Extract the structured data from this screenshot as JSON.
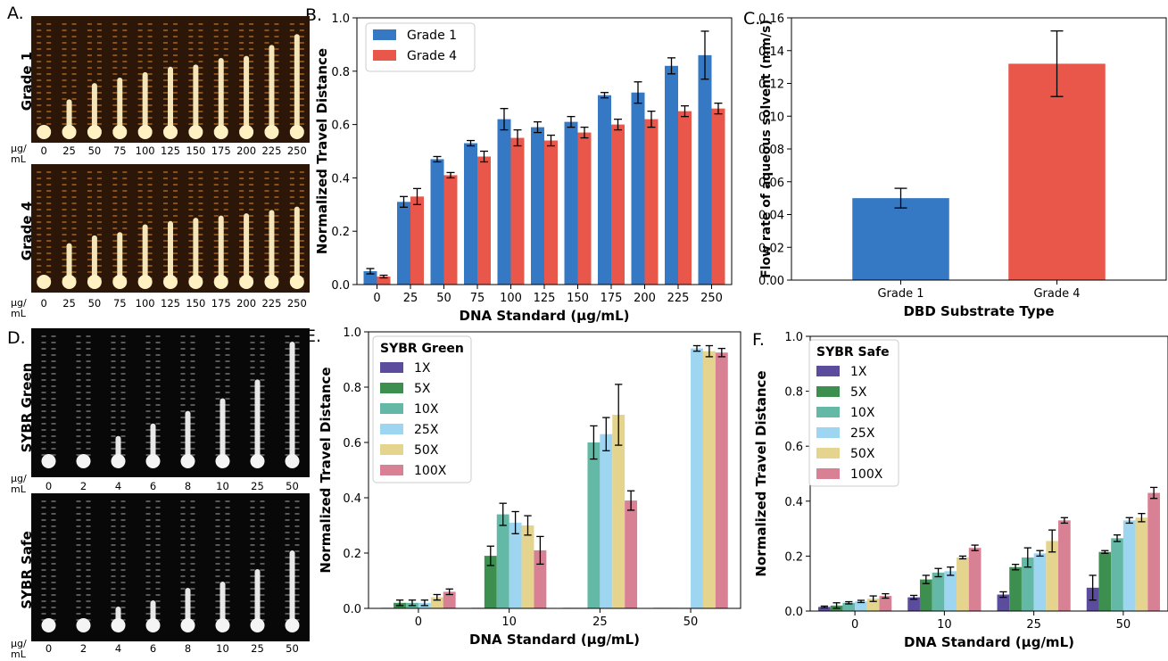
{
  "panel_labels": [
    "A.",
    "B.",
    "C.",
    "D.",
    "E.",
    "F."
  ],
  "photos": {
    "A": {
      "rows": [
        "Grade 1",
        "Grade 4"
      ],
      "ticks": [
        "0",
        "25",
        "50",
        "75",
        "100",
        "125",
        "150",
        "175",
        "200",
        "225",
        "250"
      ],
      "unit": "μg/ mL"
    },
    "D": {
      "rows": [
        "SYBR Green",
        "SYBR Safe"
      ],
      "ticks": [
        "0",
        "2",
        "4",
        "6",
        "8",
        "10",
        "25",
        "50"
      ],
      "unit": "μg/ mL"
    }
  },
  "chart_data": [
    {
      "id": "B",
      "type": "bar",
      "categories": [
        "0",
        "25",
        "50",
        "75",
        "100",
        "125",
        "150",
        "175",
        "200",
        "225",
        "250"
      ],
      "series": [
        {
          "name": "Grade 1",
          "color": "#3579c4",
          "values": [
            0.05,
            0.31,
            0.47,
            0.53,
            0.62,
            0.59,
            0.61,
            0.71,
            0.72,
            0.82,
            0.86
          ],
          "errors": [
            0.01,
            0.02,
            0.01,
            0.01,
            0.04,
            0.02,
            0.02,
            0.01,
            0.04,
            0.03,
            0.09
          ]
        },
        {
          "name": "Grade 4",
          "color": "#e8574a",
          "values": [
            0.03,
            0.33,
            0.41,
            0.48,
            0.55,
            0.54,
            0.57,
            0.6,
            0.62,
            0.65,
            0.66
          ],
          "errors": [
            0.005,
            0.03,
            0.01,
            0.02,
            0.03,
            0.02,
            0.02,
            0.02,
            0.03,
            0.02,
            0.02
          ]
        }
      ],
      "xlabel": "DNA Standard (μg/mL)",
      "ylabel": "Normalized Travel Distance",
      "ylim": [
        0,
        1.0
      ],
      "yticks": [
        "0.0",
        "0.2",
        "0.4",
        "0.6",
        "0.8",
        "1.0"
      ],
      "legend": "top-left"
    },
    {
      "id": "C",
      "type": "bar",
      "categories": [
        "Grade 1",
        "Grade 4"
      ],
      "values": [
        0.05,
        0.132
      ],
      "errors": [
        0.006,
        0.02
      ],
      "colors": [
        "#3579c4",
        "#e8574a"
      ],
      "xlabel": "DBD Substrate Type",
      "ylabel": "Flow rate of aqueous solvent (mm/s)",
      "ylim": [
        0,
        0.16
      ],
      "yticks": [
        "0.00",
        "0.02",
        "0.04",
        "0.06",
        "0.08",
        "0.10",
        "0.12",
        "0.14",
        "0.16"
      ]
    },
    {
      "id": "E",
      "type": "bar",
      "categories": [
        "0",
        "10",
        "25",
        "50"
      ],
      "legend_title": "SYBR Green",
      "series": [
        {
          "name": "1X",
          "color": "#5b4c9e",
          "values": [
            0.002,
            0.002,
            0.002,
            0.002
          ],
          "errors": [
            0,
            0,
            0,
            0
          ]
        },
        {
          "name": "5X",
          "color": "#3c8f4f",
          "values": [
            0.02,
            0.19,
            0.002,
            0.002
          ],
          "errors": [
            0.01,
            0.035,
            0,
            0
          ]
        },
        {
          "name": "10X",
          "color": "#63b9a6",
          "values": [
            0.02,
            0.34,
            0.6,
            0.002
          ],
          "errors": [
            0.01,
            0.04,
            0.06,
            0
          ]
        },
        {
          "name": "25X",
          "color": "#9ed6f1",
          "values": [
            0.02,
            0.31,
            0.63,
            0.94
          ],
          "errors": [
            0.01,
            0.04,
            0.06,
            0.01
          ]
        },
        {
          "name": "50X",
          "color": "#e5d48d",
          "values": [
            0.04,
            0.3,
            0.7,
            0.93
          ],
          "errors": [
            0.01,
            0.035,
            0.11,
            0.02
          ]
        },
        {
          "name": "100X",
          "color": "#d88194",
          "values": [
            0.06,
            0.21,
            0.39,
            0.925
          ],
          "errors": [
            0.01,
            0.05,
            0.035,
            0.015
          ]
        }
      ],
      "xlabel": "DNA Standard (μg/mL)",
      "ylabel": "Normalized Travel Distance",
      "ylim": [
        0,
        1.0
      ],
      "yticks": [
        "0.0",
        "0.2",
        "0.4",
        "0.6",
        "0.8",
        "1.0"
      ],
      "legend": "top-left"
    },
    {
      "id": "F",
      "type": "bar",
      "categories": [
        "0",
        "10",
        "25",
        "50"
      ],
      "legend_title": "SYBR Safe",
      "series": [
        {
          "name": "1X",
          "color": "#5b4c9e",
          "values": [
            0.015,
            0.05,
            0.06,
            0.085
          ],
          "errors": [
            0.003,
            0.007,
            0.01,
            0.045
          ]
        },
        {
          "name": "5X",
          "color": "#3c8f4f",
          "values": [
            0.02,
            0.115,
            0.16,
            0.215
          ],
          "errors": [
            0.01,
            0.015,
            0.01,
            0.005
          ]
        },
        {
          "name": "10X",
          "color": "#63b9a6",
          "values": [
            0.03,
            0.14,
            0.195,
            0.265
          ],
          "errors": [
            0.004,
            0.015,
            0.035,
            0.012
          ]
        },
        {
          "name": "25X",
          "color": "#9ed6f1",
          "values": [
            0.035,
            0.145,
            0.21,
            0.33
          ],
          "errors": [
            0.004,
            0.015,
            0.01,
            0.01
          ]
        },
        {
          "name": "50X",
          "color": "#e5d48d",
          "values": [
            0.045,
            0.195,
            0.255,
            0.34
          ],
          "errors": [
            0.01,
            0.005,
            0.04,
            0.015
          ]
        },
        {
          "name": "100X",
          "color": "#d88194",
          "values": [
            0.055,
            0.23,
            0.33,
            0.43
          ],
          "errors": [
            0.008,
            0.01,
            0.01,
            0.02
          ]
        }
      ],
      "xlabel": "DNA Standard (μg/mL)",
      "ylabel": "Normalized Travel Distance",
      "ylim": [
        0,
        1.0
      ],
      "yticks": [
        "0.0",
        "0.2",
        "0.4",
        "0.6",
        "0.8",
        "1.0"
      ],
      "legend": "top-left"
    }
  ]
}
